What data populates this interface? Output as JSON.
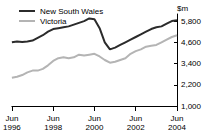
{
  "chart_data": {
    "type": "line",
    "y_label": "$m",
    "categories": [
      "Jun\n1996",
      null,
      null,
      null,
      null,
      null,
      null,
      null,
      "Jun\n1998",
      null,
      null,
      null,
      null,
      null,
      null,
      null,
      "Jun\n2000",
      null,
      null,
      null,
      null,
      null,
      null,
      null,
      "Jun\n2002",
      null,
      null,
      null,
      null,
      null,
      null,
      null,
      "Jun\n2004"
    ],
    "series": [
      {
        "name": "New South Wales",
        "color": "#2b2b2b",
        "values": [
          4600,
          4650,
          4620,
          4650,
          4700,
          4850,
          5000,
          5200,
          5350,
          5400,
          5450,
          5500,
          5600,
          5700,
          5800,
          5950,
          5900,
          5400,
          4600,
          4200,
          4300,
          4450,
          4600,
          4750,
          4900,
          5050,
          5200,
          5350,
          5450,
          5500,
          5650,
          5800,
          5850
        ]
      },
      {
        "name": "Victoria",
        "color": "#b4b4b4",
        "values": [
          2600,
          2650,
          2750,
          2900,
          3000,
          3000,
          3100,
          3300,
          3550,
          3700,
          3750,
          3700,
          3750,
          3900,
          3850,
          3900,
          3950,
          3800,
          3600,
          3450,
          3500,
          3600,
          3700,
          3950,
          4100,
          4200,
          4350,
          4400,
          4450,
          4600,
          4750,
          4900,
          5000
        ]
      }
    ],
    "ylim": [
      1000,
      6200
    ],
    "yticks": [
      1000,
      2200,
      3400,
      4600,
      5800
    ],
    "grid": false,
    "legend": "top-left"
  }
}
